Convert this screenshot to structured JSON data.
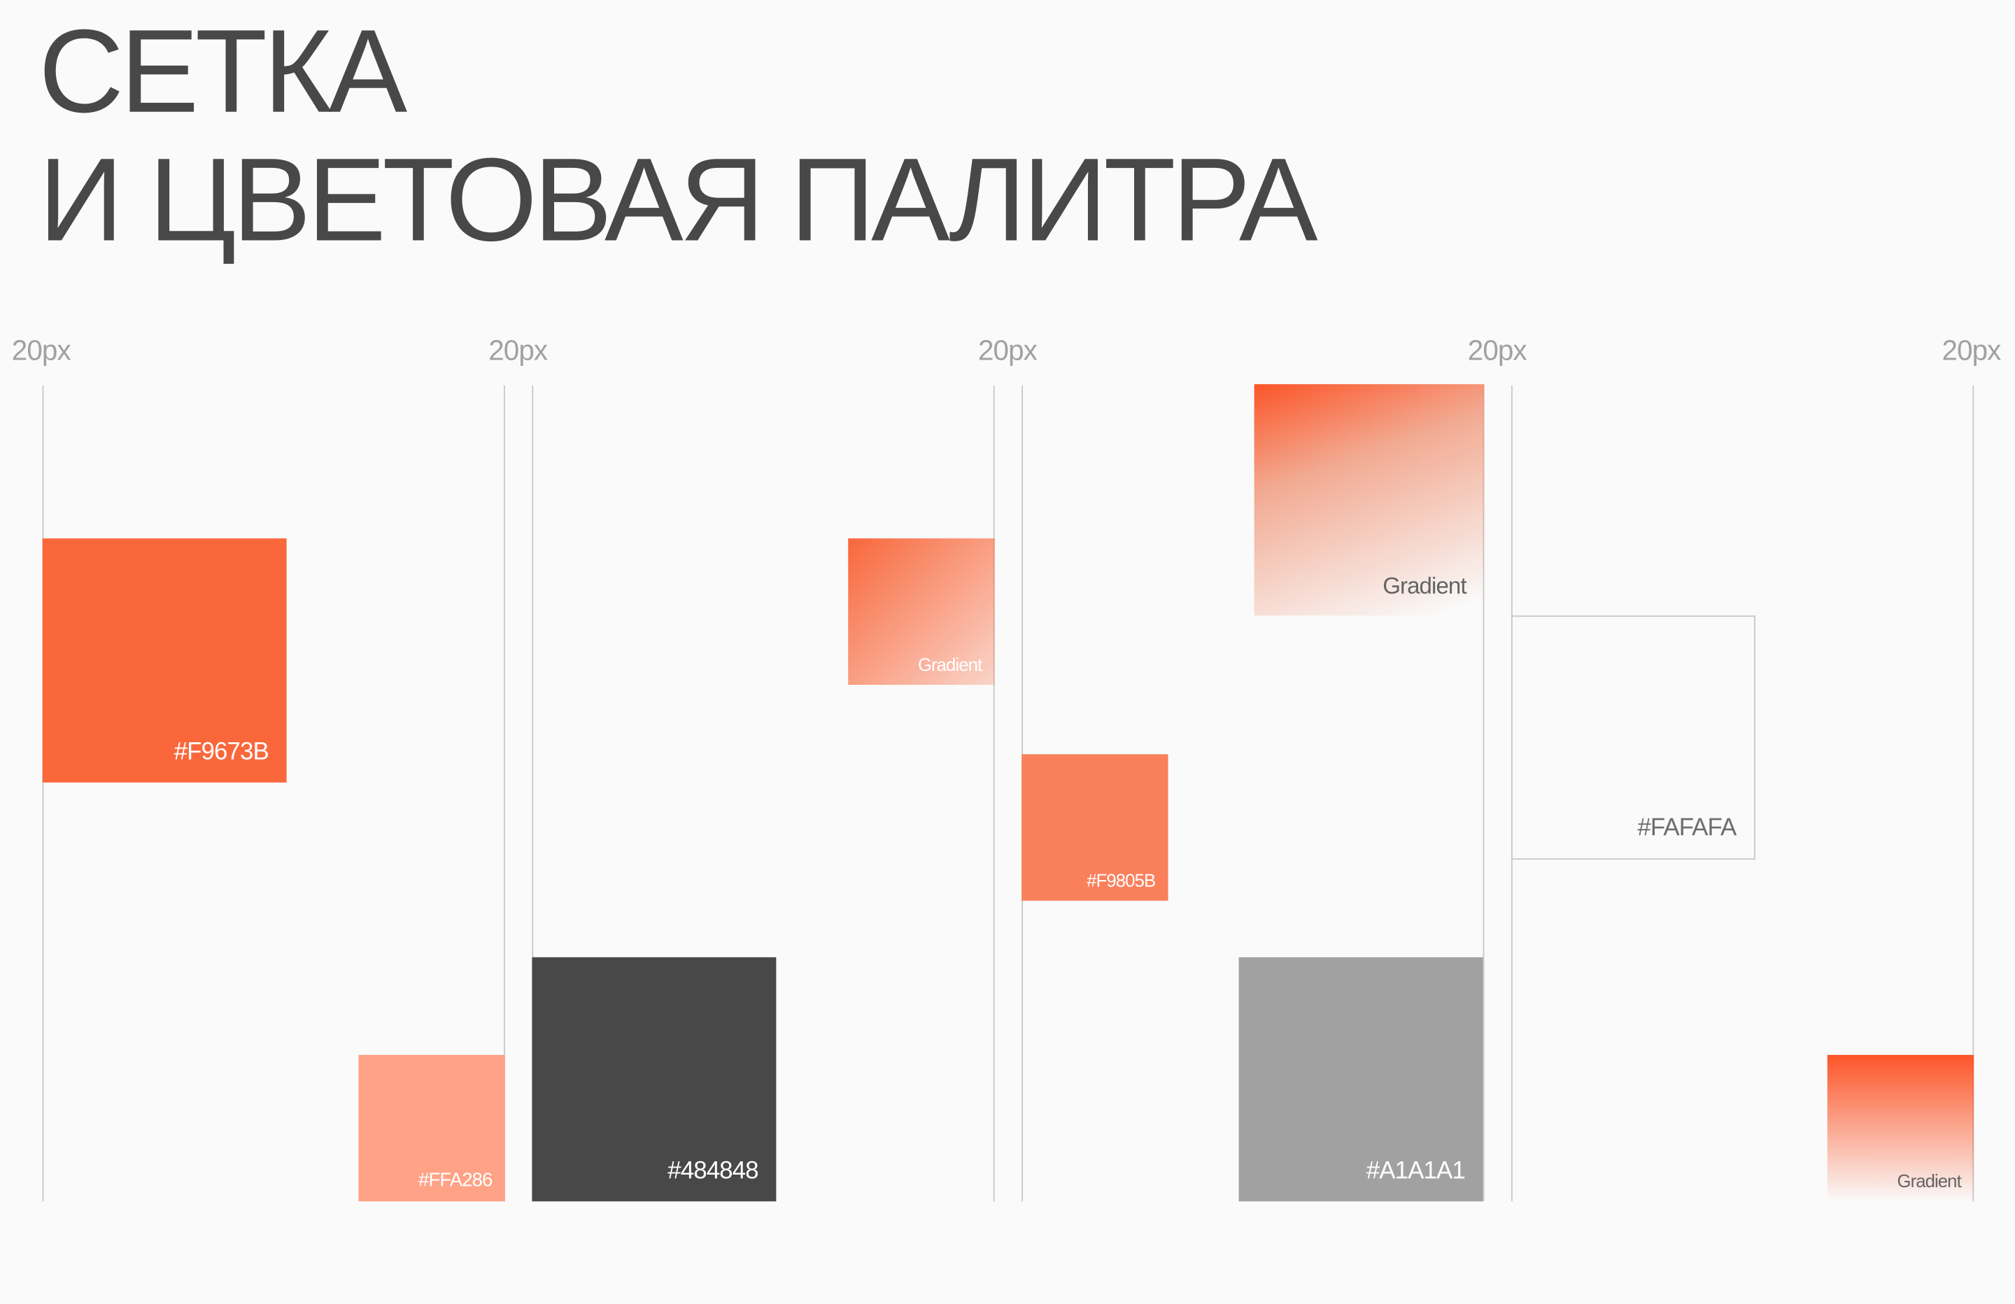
{
  "title": {
    "lines": [
      "СЕТКА",
      "И ЦВЕТОВАЯ ПАЛИТРА"
    ]
  },
  "grid": {
    "labels": [
      "20px",
      "20px",
      "20px",
      "20px",
      "20px"
    ]
  },
  "swatches": [
    {
      "label": "#F9673B"
    },
    {
      "label": "#FFA286"
    },
    {
      "label": "#484848"
    },
    {
      "label": "Gradient"
    },
    {
      "label": "#F9805B"
    },
    {
      "label": "Gradient"
    },
    {
      "label": "#A1A1A1"
    },
    {
      "label": "#FAFAFA"
    },
    {
      "label": "Gradient"
    }
  ]
}
